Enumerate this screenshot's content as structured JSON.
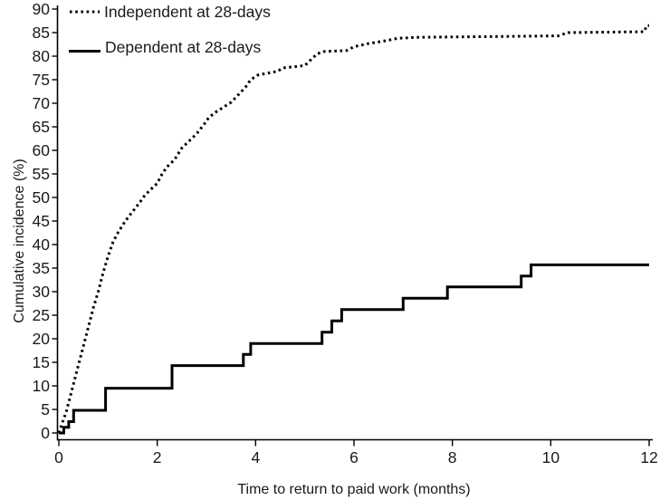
{
  "chart_data": {
    "type": "line",
    "title": "",
    "xlabel": "Time to return to paid work (months)",
    "ylabel": "Cumulative incidence (%)",
    "xlim": [
      0,
      12
    ],
    "ylim": [
      0,
      90
    ],
    "xticks": [
      0,
      2,
      4,
      6,
      8,
      10,
      12
    ],
    "yticks": [
      0,
      5,
      10,
      15,
      20,
      25,
      30,
      35,
      40,
      45,
      50,
      55,
      60,
      65,
      70,
      75,
      80,
      85,
      90
    ],
    "grid": false,
    "legend_position": "top-left",
    "line_color": "#000000",
    "background_color": "#ffffff",
    "series": [
      {
        "name": "Independent at 28-days",
        "style": "dotted",
        "color": "#000000",
        "step": false,
        "points": [
          [
            0,
            0
          ],
          [
            0.05,
            1.5
          ],
          [
            0.1,
            3
          ],
          [
            0.15,
            4.5
          ],
          [
            0.2,
            6.5
          ],
          [
            0.25,
            8.5
          ],
          [
            0.3,
            10.5
          ],
          [
            0.4,
            14.5
          ],
          [
            0.5,
            18.5
          ],
          [
            0.6,
            22.5
          ],
          [
            0.7,
            26.5
          ],
          [
            0.8,
            30
          ],
          [
            0.9,
            34
          ],
          [
            1,
            37.5
          ],
          [
            1.1,
            40.5
          ],
          [
            1.2,
            42.5
          ],
          [
            1.35,
            45
          ],
          [
            1.5,
            47
          ],
          [
            1.65,
            49
          ],
          [
            1.75,
            50.5
          ],
          [
            1.9,
            52
          ],
          [
            2,
            53
          ],
          [
            2.1,
            55
          ],
          [
            2.2,
            56.5
          ],
          [
            2.35,
            58
          ],
          [
            2.5,
            60.5
          ],
          [
            2.65,
            62
          ],
          [
            2.8,
            63.5
          ],
          [
            2.95,
            65.5
          ],
          [
            3.05,
            67
          ],
          [
            3.2,
            68.2
          ],
          [
            3.35,
            69.2
          ],
          [
            3.5,
            70.2
          ],
          [
            3.65,
            71.8
          ],
          [
            3.8,
            73.5
          ],
          [
            3.9,
            75
          ],
          [
            4.05,
            76
          ],
          [
            4.45,
            76.8
          ],
          [
            4.55,
            77.5
          ],
          [
            5,
            78
          ],
          [
            5.1,
            79
          ],
          [
            5.25,
            80.5
          ],
          [
            5.4,
            81
          ],
          [
            5.85,
            81.2
          ],
          [
            6,
            82
          ],
          [
            6.3,
            82.7
          ],
          [
            6.6,
            83.2
          ],
          [
            6.9,
            83.8
          ],
          [
            7.3,
            84
          ],
          [
            10.15,
            84.3
          ],
          [
            10.35,
            85
          ],
          [
            11.9,
            85.2
          ],
          [
            11.95,
            86.5
          ],
          [
            12,
            86.5
          ]
        ]
      },
      {
        "name": "Dependent at 28-days",
        "style": "solid",
        "color": "#000000",
        "step": true,
        "points": [
          [
            0,
            0
          ],
          [
            0.1,
            1.2
          ],
          [
            0.2,
            2.4
          ],
          [
            0.3,
            4.8
          ],
          [
            0.95,
            9.5
          ],
          [
            2.3,
            14.3
          ],
          [
            3.75,
            16.7
          ],
          [
            3.9,
            19
          ],
          [
            5.35,
            21.4
          ],
          [
            5.55,
            23.8
          ],
          [
            5.75,
            26.2
          ],
          [
            7,
            28.6
          ],
          [
            7.9,
            31
          ],
          [
            9.4,
            33.3
          ],
          [
            9.6,
            35.7
          ],
          [
            12,
            35.7
          ]
        ]
      }
    ]
  }
}
